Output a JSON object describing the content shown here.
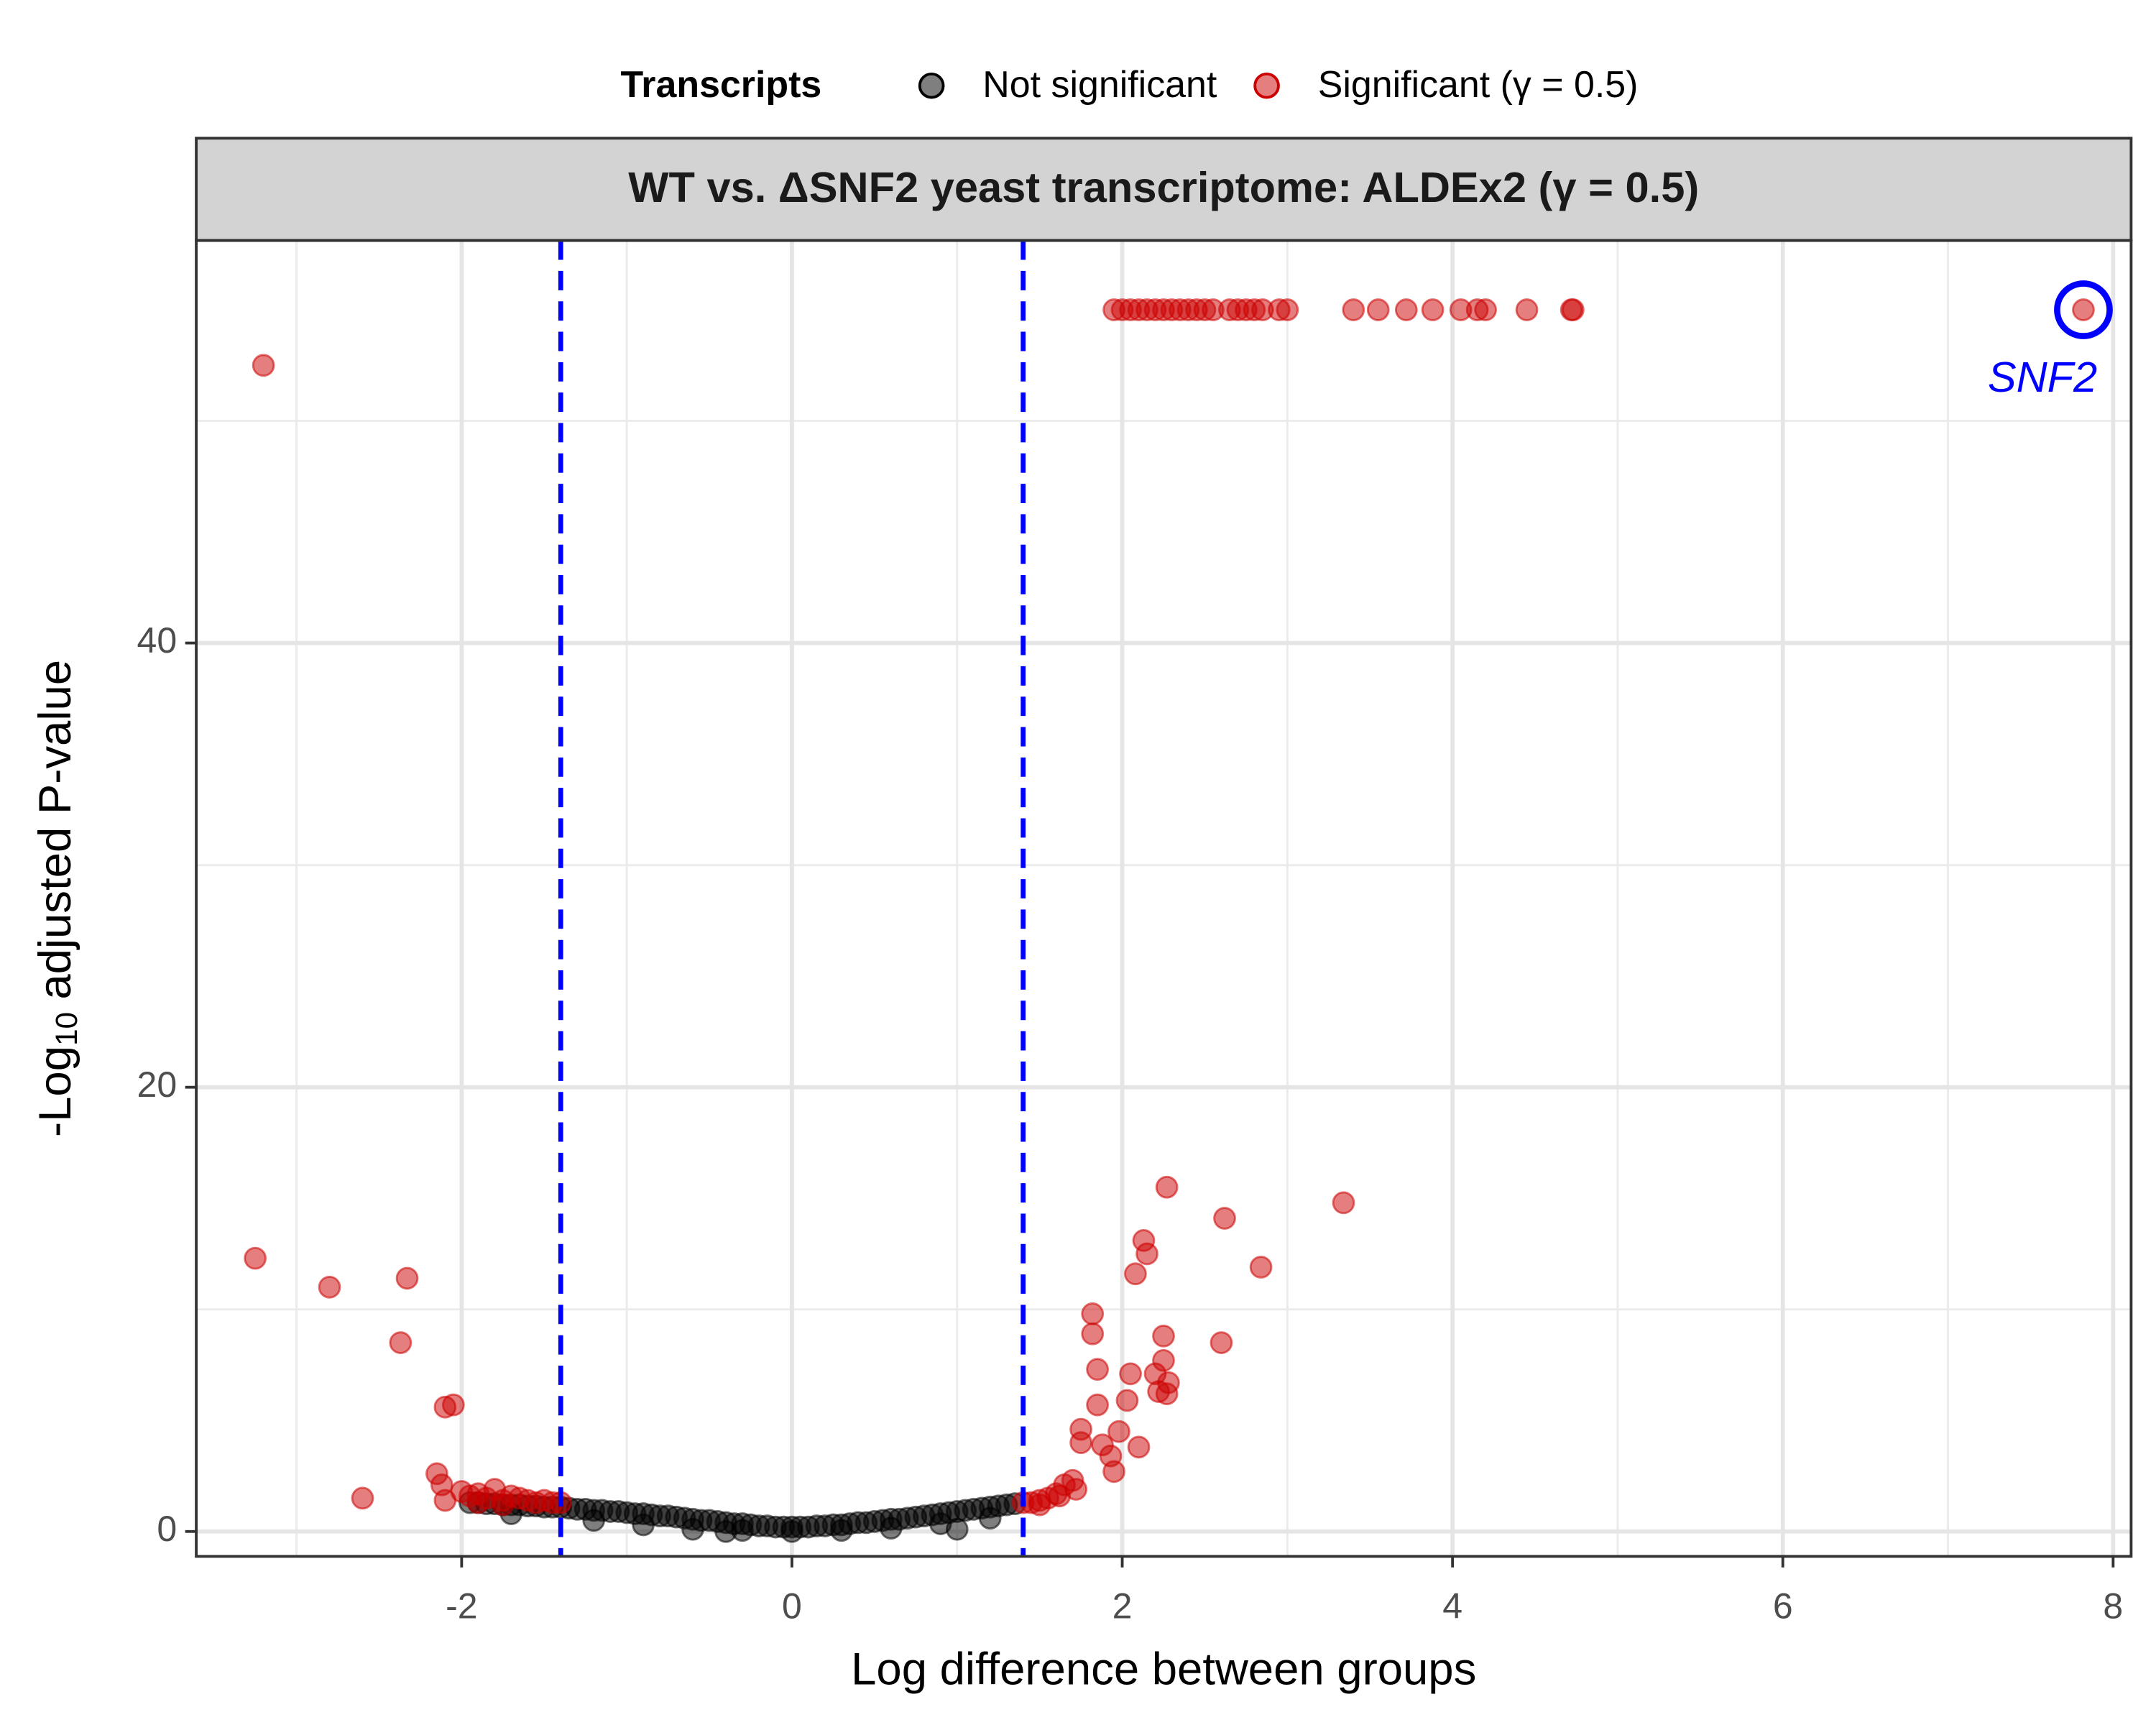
{
  "chart_data": {
    "type": "scatter",
    "title": "WT vs. ΔSNF2 yeast transcriptome: ALDEx2 (γ = 0.5)",
    "x_label": "Log difference between groups",
    "y_label": {
      "prefix": "-Log",
      "subscript": "10",
      "text": "adjusted P-value"
    },
    "legend_title": "Transcripts",
    "legend_position": "top",
    "grid": true,
    "xlim": [
      -3.607,
      8.109
    ],
    "ylim": [
      -1.12,
      58.12
    ],
    "xticks": [
      -2,
      0,
      2,
      4,
      6,
      8
    ],
    "yticks": [
      0,
      20,
      40
    ],
    "minor_xticks": [
      -3,
      -1,
      1,
      3,
      5,
      7
    ],
    "minor_yticks": [
      10,
      30,
      50
    ],
    "vlines": [
      -1.4,
      1.4
    ],
    "vline_color": "#0000ff",
    "annotation": {
      "text": "SNF2",
      "x": 7.82,
      "y": 55,
      "color": "#0000ff"
    },
    "series": [
      {
        "name": "Not significant",
        "color": "#000000",
        "x": [
          -1.95,
          -1.9,
          -1.85,
          -1.8,
          -1.75,
          -1.7,
          -1.65,
          -1.6,
          -1.55,
          -1.5,
          -1.45,
          -1.4,
          -1.35,
          -1.3,
          -1.25,
          -1.2,
          -1.15,
          -1.1,
          -1.05,
          -1.0,
          -0.95,
          -0.9,
          -0.85,
          -0.8,
          -0.75,
          -0.7,
          -0.65,
          -0.6,
          -0.55,
          -0.5,
          -0.45,
          -0.4,
          -0.35,
          -0.3,
          -0.25,
          -0.2,
          -0.15,
          -0.1,
          -0.05,
          0,
          0.05,
          0.1,
          0.15,
          0.2,
          0.25,
          0.3,
          0.35,
          0.4,
          0.45,
          0.5,
          0.55,
          0.6,
          0.65,
          0.7,
          0.75,
          0.8,
          0.85,
          0.9,
          0.95,
          1.0,
          1.05,
          1.1,
          1.15,
          1.2,
          1.25,
          1.3,
          1.35,
          -1.2,
          -0.9,
          -0.6,
          -0.3,
          0.0,
          0.3,
          0.6,
          0.9,
          1.2,
          -1.7,
          1.0,
          -0.4
        ],
        "values": [
          1.3,
          1.3,
          1.25,
          1.25,
          1.2,
          1.2,
          1.2,
          1.15,
          1.15,
          1.1,
          1.1,
          1.1,
          1.05,
          1.0,
          1.0,
          0.95,
          0.95,
          0.9,
          0.9,
          0.85,
          0.8,
          0.8,
          0.75,
          0.7,
          0.7,
          0.65,
          0.6,
          0.55,
          0.5,
          0.5,
          0.45,
          0.4,
          0.35,
          0.35,
          0.3,
          0.25,
          0.25,
          0.2,
          0.2,
          0.2,
          0.2,
          0.2,
          0.25,
          0.25,
          0.3,
          0.3,
          0.35,
          0.4,
          0.4,
          0.45,
          0.5,
          0.55,
          0.55,
          0.6,
          0.65,
          0.7,
          0.75,
          0.8,
          0.85,
          0.9,
          0.95,
          1.0,
          1.05,
          1.1,
          1.15,
          1.2,
          1.25,
          0.5,
          0.3,
          0.1,
          0.05,
          0.0,
          0.05,
          0.15,
          0.35,
          0.6,
          0.8,
          0.1,
          0.0
        ]
      },
      {
        "name": "Significant (γ = 0.5)",
        "color": "#cc0000",
        "x": [
          1.95,
          2.0,
          2.05,
          2.1,
          2.15,
          2.2,
          2.25,
          2.3,
          2.35,
          2.4,
          2.45,
          2.5,
          2.55,
          2.65,
          2.7,
          2.75,
          2.8,
          2.85,
          2.95,
          3.0,
          3.4,
          3.55,
          3.72,
          3.88,
          4.05,
          4.15,
          4.2,
          4.45,
          4.72,
          4.73,
          7.82,
          -3.2,
          -3.25,
          -2.8,
          -2.33,
          -2.37,
          -2.1,
          -2.05,
          -2.15,
          -2.12,
          -2.6,
          -2.1,
          2.27,
          3.34,
          2.62,
          2.13,
          2.15,
          2.84,
          2.08,
          1.82,
          1.82,
          2.25,
          2.6,
          2.25,
          1.85,
          2.05,
          2.2,
          2.28,
          2.22,
          2.27,
          2.03,
          1.85,
          1.75,
          1.75,
          1.98,
          2.1,
          1.88,
          1.93,
          1.95,
          -2.0,
          -1.95,
          -1.9,
          -1.85,
          -1.8,
          -1.75,
          -1.7,
          -1.65,
          -1.6,
          -1.55,
          -1.5,
          -1.45,
          -1.4,
          -1.9,
          -1.75,
          1.4,
          1.45,
          1.5,
          1.55,
          1.6,
          1.65,
          1.7,
          1.72,
          1.62,
          1.5
        ],
        "values": [
          55,
          55,
          55,
          55,
          55,
          55,
          55,
          55,
          55,
          55,
          55,
          55,
          55,
          55,
          55,
          55,
          55,
          55,
          55,
          55,
          55,
          55,
          55,
          55,
          55,
          55,
          55,
          55,
          55,
          55,
          55,
          52.5,
          12.3,
          11.0,
          11.4,
          8.5,
          5.6,
          5.7,
          2.6,
          2.1,
          1.5,
          1.4,
          15.5,
          14.8,
          14.1,
          13.1,
          12.5,
          11.9,
          11.6,
          9.8,
          8.9,
          8.8,
          8.5,
          7.7,
          7.3,
          7.1,
          7.1,
          6.7,
          6.3,
          6.2,
          5.9,
          5.7,
          4.6,
          4.0,
          4.5,
          3.8,
          3.9,
          3.4,
          2.7,
          1.8,
          1.6,
          1.7,
          1.5,
          1.9,
          1.4,
          1.6,
          1.5,
          1.4,
          1.3,
          1.4,
          1.3,
          1.3,
          1.3,
          1.2,
          1.3,
          1.3,
          1.4,
          1.5,
          1.7,
          2.1,
          2.3,
          1.9,
          1.6,
          1.2
        ]
      }
    ]
  }
}
